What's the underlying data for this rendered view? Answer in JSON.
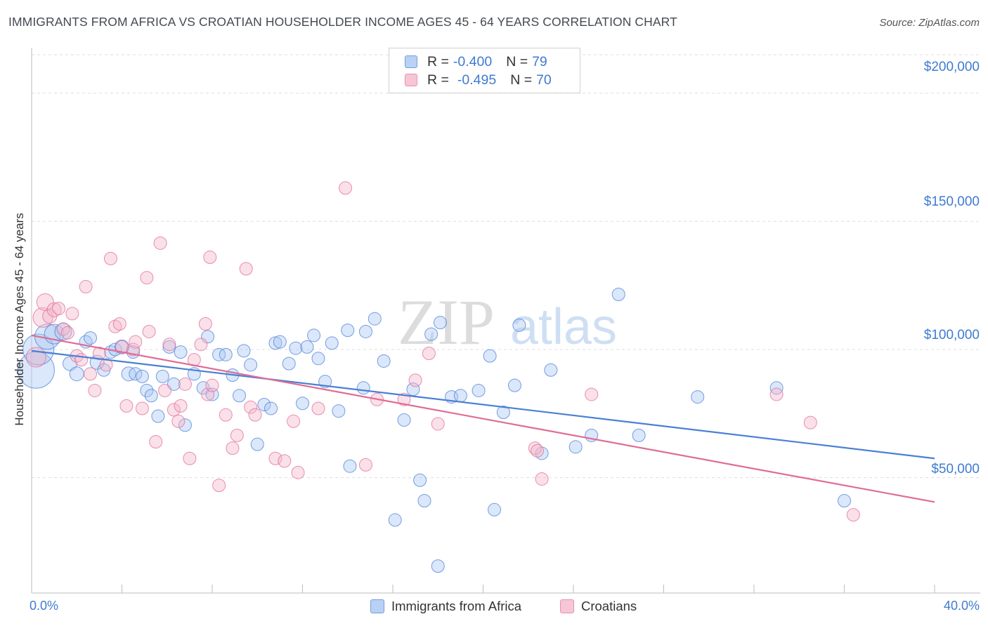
{
  "header": {
    "title": "IMMIGRANTS FROM AFRICA VS CROATIAN HOUSEHOLDER INCOME AGES 45 - 64 YEARS CORRELATION CHART",
    "source": "Source: ZipAtlas.com"
  },
  "watermark": {
    "zip": "ZIP",
    "atlas": "atlas"
  },
  "legend_stats": {
    "r_label": "R =",
    "n_label": "N =",
    "rows": [
      {
        "r": "-0.400",
        "n": "79"
      },
      {
        "r": "-0.495",
        "n": "70"
      }
    ]
  },
  "chart_data": {
    "type": "scatter",
    "title": "IMMIGRANTS FROM AFRICA VS CROATIAN HOUSEHOLDER INCOME AGES 45 - 64 YEARS CORRELATION CHART",
    "xlabel": "",
    "ylabel": "Householder Income Ages 45 - 64 years",
    "xlim": [
      0,
      40
    ],
    "ylim": [
      5000,
      215000
    ],
    "x_tick_labels": [
      "0.0%",
      "40.0%"
    ],
    "y_ticks": [
      50000,
      100000,
      150000,
      200000
    ],
    "y_tick_labels": [
      "$50,000",
      "$100,000",
      "$150,000",
      "$200,000"
    ],
    "grid": "horizontal dashed",
    "legend_position": "bottom-center",
    "series": [
      {
        "name": "Immigrants from Africa",
        "color": "#4a80d4",
        "fill": "#a9c6f2",
        "trend": {
          "x": [
            0,
            40
          ],
          "y": [
            99500,
            57500
          ]
        },
        "points": [
          [
            0.2,
            92000,
            26
          ],
          [
            0.3,
            100000,
            22
          ],
          [
            0.7,
            105000,
            18
          ],
          [
            1.0,
            106000,
            14
          ],
          [
            1.4,
            107000,
            12
          ],
          [
            1.7,
            94500,
            10
          ],
          [
            2.0,
            90500,
            10
          ],
          [
            2.4,
            103000,
            9
          ],
          [
            2.6,
            104500,
            9
          ],
          [
            2.9,
            95000,
            10
          ],
          [
            3.2,
            92000,
            9
          ],
          [
            3.5,
            99000,
            9
          ],
          [
            3.7,
            100000,
            9
          ],
          [
            4.0,
            101000,
            10
          ],
          [
            4.3,
            90500,
            10
          ],
          [
            4.5,
            99000,
            9
          ],
          [
            4.6,
            90500,
            9
          ],
          [
            4.9,
            89500,
            9
          ],
          [
            5.1,
            84000,
            9
          ],
          [
            5.3,
            82000,
            9
          ],
          [
            5.6,
            74000,
            9
          ],
          [
            5.8,
            89500,
            9
          ],
          [
            6.1,
            101000,
            9
          ],
          [
            6.3,
            86500,
            9
          ],
          [
            6.6,
            99000,
            9
          ],
          [
            6.8,
            70500,
            9
          ],
          [
            7.2,
            90500,
            9
          ],
          [
            7.6,
            85000,
            9
          ],
          [
            7.8,
            105000,
            9
          ],
          [
            8.0,
            82500,
            9
          ],
          [
            8.3,
            98000,
            9
          ],
          [
            8.6,
            98000,
            9
          ],
          [
            8.9,
            90000,
            9
          ],
          [
            9.2,
            82000,
            9
          ],
          [
            9.4,
            99500,
            9
          ],
          [
            9.7,
            94000,
            9
          ],
          [
            10.0,
            63000,
            9
          ],
          [
            10.3,
            78500,
            9
          ],
          [
            10.6,
            77000,
            9
          ],
          [
            10.8,
            102500,
            9
          ],
          [
            11.0,
            103000,
            9
          ],
          [
            11.4,
            94500,
            9
          ],
          [
            11.7,
            100500,
            9
          ],
          [
            12.0,
            79000,
            9
          ],
          [
            12.2,
            101000,
            9
          ],
          [
            12.5,
            105500,
            9
          ],
          [
            12.7,
            96500,
            9
          ],
          [
            13.0,
            87500,
            9
          ],
          [
            13.3,
            102500,
            9
          ],
          [
            13.6,
            76000,
            9
          ],
          [
            14.0,
            107500,
            9
          ],
          [
            14.1,
            54500,
            9
          ],
          [
            14.7,
            85000,
            9
          ],
          [
            14.8,
            107000,
            9
          ],
          [
            15.2,
            112000,
            9
          ],
          [
            15.6,
            95500,
            9
          ],
          [
            16.1,
            33500,
            9
          ],
          [
            16.5,
            72500,
            9
          ],
          [
            16.9,
            84500,
            9
          ],
          [
            17.2,
            49000,
            9
          ],
          [
            17.4,
            41000,
            9
          ],
          [
            17.7,
            106000,
            9
          ],
          [
            18.1,
            110500,
            9
          ],
          [
            18.0,
            15500,
            9
          ],
          [
            18.6,
            81500,
            9
          ],
          [
            19.0,
            82000,
            9
          ],
          [
            19.8,
            84000,
            9
          ],
          [
            20.3,
            97500,
            9
          ],
          [
            20.5,
            37500,
            9
          ],
          [
            20.9,
            75500,
            9
          ],
          [
            21.4,
            86000,
            9
          ],
          [
            21.6,
            109500,
            9
          ],
          [
            22.6,
            59500,
            9
          ],
          [
            23.0,
            92000,
            9
          ],
          [
            24.1,
            62000,
            9
          ],
          [
            24.8,
            66500,
            9
          ],
          [
            26.0,
            121500,
            9
          ],
          [
            26.9,
            66500,
            9
          ],
          [
            29.5,
            81500,
            9
          ],
          [
            33.0,
            85000,
            9
          ],
          [
            36.0,
            41000,
            9
          ]
        ]
      },
      {
        "name": "Croatians",
        "color": "#e06c95",
        "fill": "#f4b6ca",
        "trend": {
          "x": [
            0,
            40
          ],
          "y": [
            105500,
            40500
          ]
        },
        "points": [
          [
            0.2,
            97000,
            14
          ],
          [
            0.5,
            112500,
            14
          ],
          [
            0.6,
            118500,
            12
          ],
          [
            0.8,
            113000,
            10
          ],
          [
            1.0,
            115500,
            10
          ],
          [
            1.2,
            116000,
            9
          ],
          [
            1.4,
            108000,
            9
          ],
          [
            1.6,
            106500,
            9
          ],
          [
            1.8,
            114000,
            9
          ],
          [
            2.0,
            97500,
            9
          ],
          [
            2.2,
            96000,
            9
          ],
          [
            2.4,
            124500,
            9
          ],
          [
            2.6,
            90500,
            9
          ],
          [
            2.8,
            84000,
            9
          ],
          [
            3.0,
            98500,
            9
          ],
          [
            3.3,
            94000,
            9
          ],
          [
            3.5,
            135500,
            9
          ],
          [
            3.7,
            109000,
            9
          ],
          [
            3.9,
            110000,
            9
          ],
          [
            4.0,
            101000,
            9
          ],
          [
            4.2,
            78000,
            9
          ],
          [
            4.5,
            100000,
            9
          ],
          [
            4.6,
            103000,
            9
          ],
          [
            4.9,
            77000,
            9
          ],
          [
            5.1,
            128000,
            9
          ],
          [
            5.2,
            107000,
            9
          ],
          [
            5.5,
            64000,
            9
          ],
          [
            5.7,
            141500,
            9
          ],
          [
            5.9,
            84000,
            9
          ],
          [
            6.1,
            102000,
            9
          ],
          [
            6.3,
            76500,
            9
          ],
          [
            6.5,
            72000,
            9
          ],
          [
            6.6,
            78000,
            9
          ],
          [
            6.8,
            86500,
            9
          ],
          [
            7.0,
            57500,
            9
          ],
          [
            7.2,
            96000,
            9
          ],
          [
            7.5,
            102000,
            9
          ],
          [
            7.7,
            110000,
            9
          ],
          [
            7.8,
            82500,
            9
          ],
          [
            7.9,
            136000,
            9
          ],
          [
            8.0,
            86000,
            9
          ],
          [
            8.3,
            47000,
            9
          ],
          [
            8.6,
            74500,
            9
          ],
          [
            8.9,
            61500,
            9
          ],
          [
            9.1,
            66500,
            9
          ],
          [
            9.5,
            131500,
            9
          ],
          [
            9.7,
            77500,
            9
          ],
          [
            9.9,
            74500,
            9
          ],
          [
            10.8,
            57500,
            9
          ],
          [
            11.2,
            56500,
            9
          ],
          [
            11.6,
            72000,
            9
          ],
          [
            11.8,
            52000,
            9
          ],
          [
            12.7,
            77000,
            9
          ],
          [
            13.9,
            163000,
            9
          ],
          [
            14.8,
            55000,
            9
          ],
          [
            15.3,
            80500,
            9
          ],
          [
            16.5,
            80500,
            9
          ],
          [
            17.0,
            88000,
            9
          ],
          [
            17.6,
            98500,
            9
          ],
          [
            18.0,
            71000,
            9
          ],
          [
            22.3,
            61500,
            9
          ],
          [
            22.4,
            60500,
            9
          ],
          [
            22.6,
            49500,
            9
          ],
          [
            24.8,
            82500,
            9
          ],
          [
            33.0,
            82500,
            9
          ],
          [
            34.5,
            71500,
            9
          ],
          [
            36.4,
            35500,
            9
          ]
        ]
      }
    ]
  }
}
